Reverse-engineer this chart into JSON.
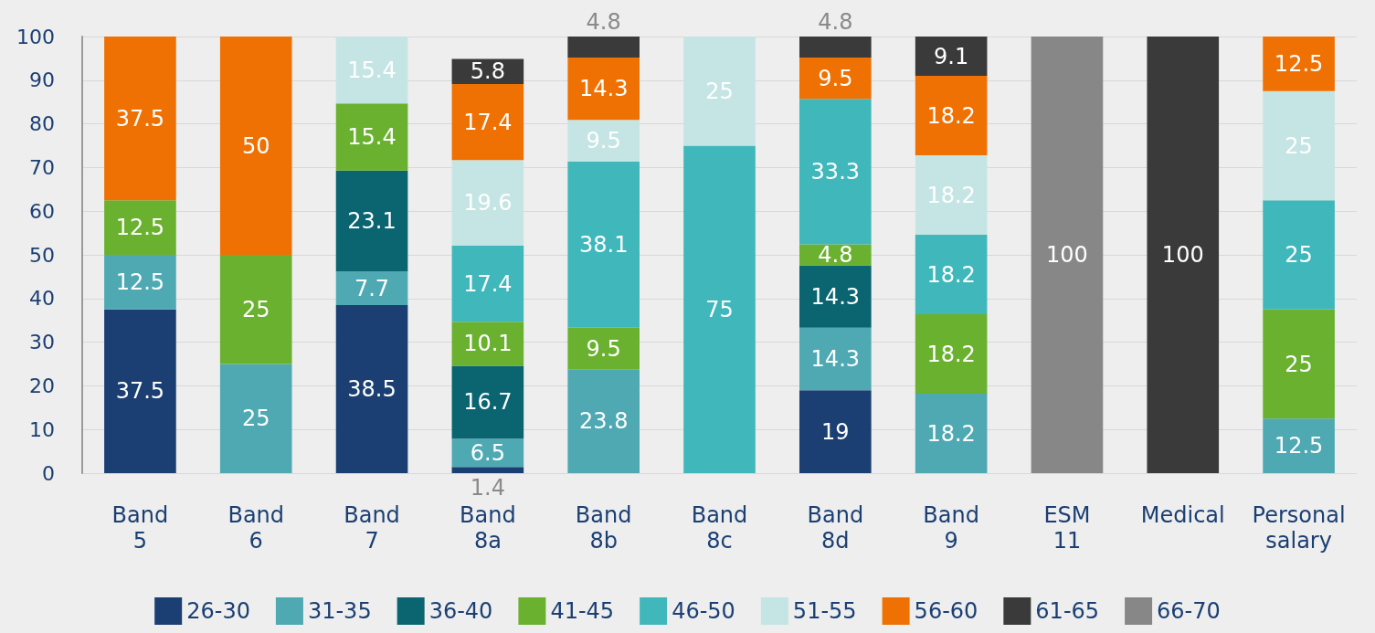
{
  "chart_data": {
    "type": "bar",
    "stacked": true,
    "data_labels": true,
    "grid": "y",
    "legend": "bottom",
    "categories": [
      "Band\n5",
      "Band\n6",
      "Band\n7",
      "Band\n8a",
      "Band\n8b",
      "Band\n8c",
      "Band\n8d",
      "Band\n9",
      "ESM\n11",
      "Medical",
      "Personal\nsalary"
    ],
    "ylim": [
      0,
      100
    ],
    "yticks": [
      0,
      10,
      20,
      30,
      40,
      50,
      60,
      70,
      80,
      90,
      100
    ],
    "series": [
      {
        "name": "26-30",
        "color": "#1b3f73",
        "values": [
          37.5,
          null,
          38.5,
          1.4,
          null,
          null,
          19,
          null,
          null,
          null,
          null
        ]
      },
      {
        "name": "31-35",
        "color": "#4fa9b3",
        "values": [
          12.5,
          25,
          7.7,
          6.5,
          23.8,
          null,
          14.3,
          18.2,
          null,
          null,
          12.5
        ]
      },
      {
        "name": "36-40",
        "color": "#0a6571",
        "values": [
          null,
          null,
          23.1,
          16.7,
          null,
          null,
          14.3,
          null,
          null,
          null,
          null
        ]
      },
      {
        "name": "41-45",
        "color": "#6ab130",
        "values": [
          12.5,
          25,
          15.4,
          10.1,
          9.5,
          null,
          4.8,
          18.2,
          null,
          null,
          25
        ]
      },
      {
        "name": "46-50",
        "color": "#40b8bb",
        "values": [
          null,
          null,
          null,
          17.4,
          38.1,
          75,
          33.3,
          18.2,
          null,
          null,
          25
        ]
      },
      {
        "name": "51-55",
        "color": "#c5e5e4",
        "values": [
          null,
          null,
          15.4,
          19.6,
          9.5,
          25,
          null,
          18.2,
          null,
          null,
          25
        ]
      },
      {
        "name": "56-60",
        "color": "#ef7104",
        "values": [
          37.5,
          50,
          null,
          17.4,
          14.3,
          null,
          9.5,
          18.2,
          null,
          null,
          12.5
        ]
      },
      {
        "name": "61-65",
        "color": "#3a3a3a",
        "values": [
          null,
          null,
          null,
          5.8,
          4.8,
          null,
          4.8,
          9.1,
          null,
          100,
          null
        ]
      },
      {
        "name": "66-70",
        "color": "#878787",
        "values": [
          null,
          null,
          null,
          null,
          null,
          null,
          null,
          null,
          100,
          null,
          null
        ]
      }
    ]
  }
}
